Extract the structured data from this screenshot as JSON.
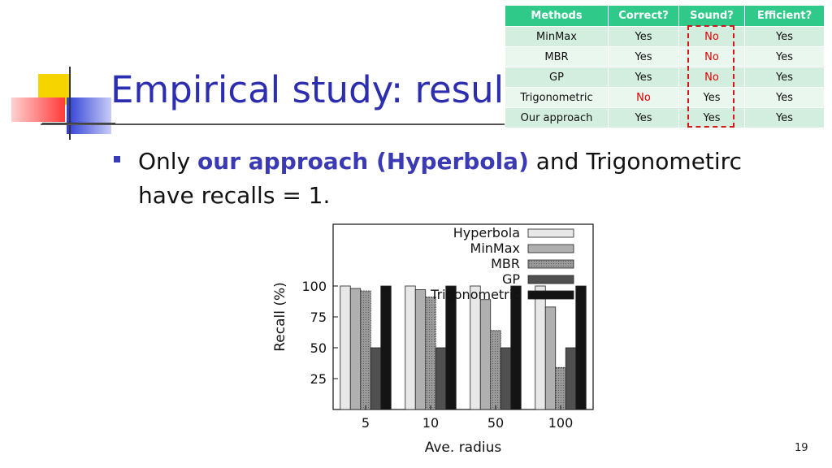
{
  "slide": {
    "title": "Empirical study: results",
    "page_number": "19",
    "bullet": {
      "prefix": "Only ",
      "highlight": "our approach (Hyperbola)",
      "suffix_line1": " and Trigonometirc",
      "line2": "have recalls = 1."
    }
  },
  "table": {
    "headers": [
      "Methods",
      "Correct?",
      "Sound?",
      "Efficient?"
    ],
    "rows": [
      [
        "MinMax",
        "Yes",
        "No",
        "Yes"
      ],
      [
        "MBR",
        "Yes",
        "No",
        "Yes"
      ],
      [
        "GP",
        "Yes",
        "No",
        "Yes"
      ],
      [
        "Trigonometric",
        "No",
        "Yes",
        "Yes"
      ],
      [
        "Our approach",
        "Yes",
        "Yes",
        "Yes"
      ]
    ]
  },
  "colors": {
    "title": "#2d2db0",
    "table_header": "#2fca8a",
    "negative": "#e00000",
    "highlight_box": "#d01818"
  },
  "chart_data": {
    "type": "bar",
    "xlabel": "Ave. radius",
    "ylabel": "Recall (%)",
    "categories": [
      "5",
      "10",
      "50",
      "100"
    ],
    "yticks": [
      25,
      50,
      75,
      100
    ],
    "ylim": [
      0,
      150
    ],
    "legend_position": "top-right",
    "series": [
      {
        "name": "Hyperbola",
        "color": "#e8e8e8",
        "pattern": "light",
        "values": [
          100,
          100,
          100,
          100
        ]
      },
      {
        "name": "MinMax",
        "color": "#b0b0b0",
        "pattern": "mid",
        "values": [
          98,
          97,
          89,
          83
        ]
      },
      {
        "name": "MBR",
        "color": "#8a8a8a",
        "pattern": "dotted",
        "values": [
          96,
          91,
          64,
          34
        ]
      },
      {
        "name": "GP",
        "color": "#505050",
        "pattern": "dark",
        "values": [
          50,
          50,
          50,
          50
        ]
      },
      {
        "name": "Trigonometric",
        "color": "#141414",
        "pattern": "black",
        "values": [
          100,
          100,
          100,
          100
        ]
      }
    ]
  }
}
